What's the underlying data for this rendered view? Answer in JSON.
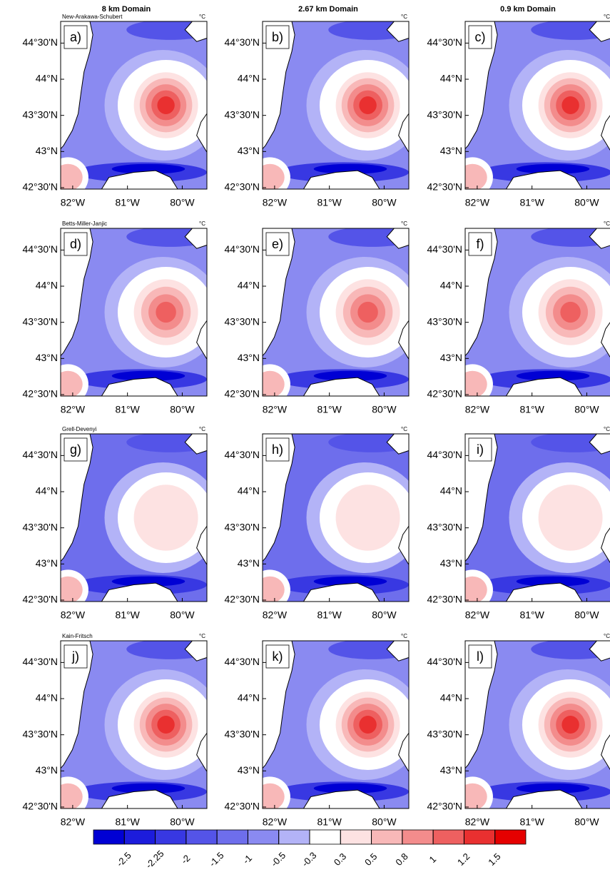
{
  "column_titles": [
    "8 km Domain",
    "2.67 km Domain",
    "0.9 km Domain"
  ],
  "unit": "°C",
  "rows": [
    {
      "scheme": "New-Arakawa-Schubert",
      "panels": [
        "a)",
        "b)",
        "c)"
      ]
    },
    {
      "scheme": "Betts-Miller-Janjic",
      "panels": [
        "d)",
        "e)",
        "f)"
      ]
    },
    {
      "scheme": "Grell-Devenyi",
      "panels": [
        "g)",
        "h)",
        "i)"
      ]
    },
    {
      "scheme": "Kain-Fritsch",
      "panels": [
        "j)",
        "k)",
        "l)"
      ]
    }
  ],
  "map_axes": {
    "xlim": [
      -82.22,
      -79.55
    ],
    "ylim": [
      42.48,
      44.8
    ],
    "xticks": [
      {
        "value": -82,
        "label": "82°W"
      },
      {
        "value": -81,
        "label": "81°W"
      },
      {
        "value": -80,
        "label": "80°W"
      }
    ],
    "yticks": [
      {
        "value": 44.5,
        "label": "44°30'N"
      },
      {
        "value": 44,
        "label": "44°N"
      },
      {
        "value": 43.5,
        "label": "43°30'N"
      },
      {
        "value": 43,
        "label": "43°N"
      },
      {
        "value": 42.5,
        "label": "42°30'N"
      }
    ]
  },
  "colorbar": {
    "levels": [
      -2.5,
      -2.25,
      -2,
      -1.5,
      -1,
      -0.5,
      -0.3,
      0.3,
      0.5,
      0.8,
      1,
      1.2,
      1.5
    ],
    "colors": [
      "#0000d4",
      "#1c1cdc",
      "#3838e2",
      "#5454e8",
      "#6e6eec",
      "#8a8af1",
      "#b3b3f7",
      "#ffffff",
      "#fde2e2",
      "#f8b8b8",
      "#f38c8c",
      "#ee6060",
      "#e93030",
      "#e50000"
    ]
  }
}
